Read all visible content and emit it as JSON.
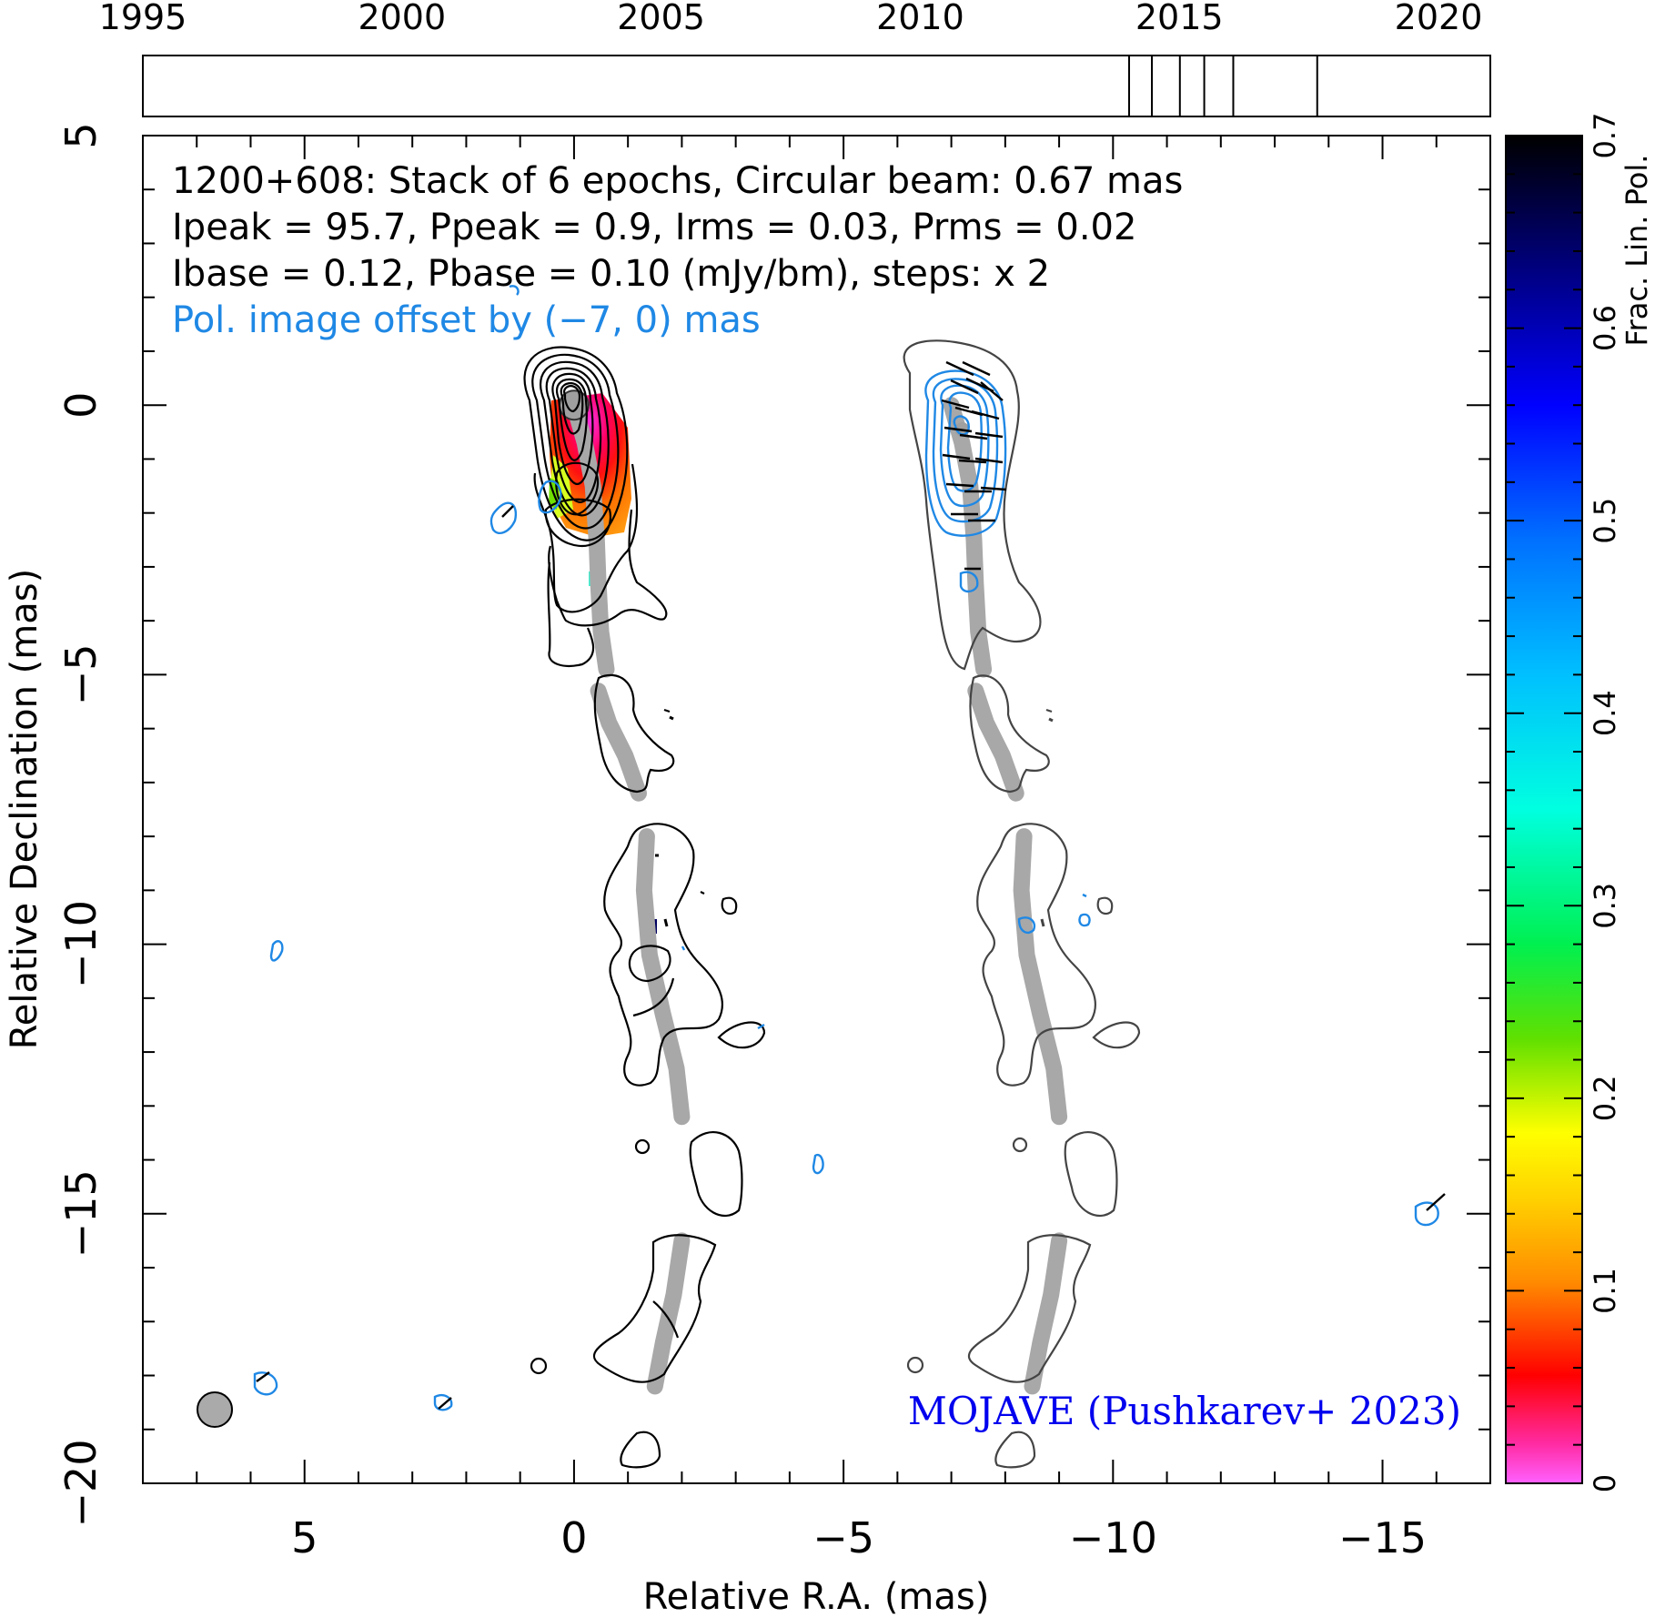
{
  "chart_data": {
    "type": "contour-image",
    "source": "1200+608",
    "header_lines": [
      "1200+608: Stack of 6 epochs, Circular beam: 0.67 mas",
      "Ipeak = 95.7, Ppeak = 0.9, Irms = 0.03, Prms = 0.02",
      "Ibase = 0.12, Pbase = 0.10 (mJy/bm), steps: x 2"
    ],
    "offset_note": "Pol. image offset by (−7, 0) mas",
    "credit": "MOJAVE (Pushkarev+ 2023)",
    "xlabel": "Relative R.A. (mas)",
    "ylabel": "Relative Declination (mas)",
    "xlim": [
      8,
      -17
    ],
    "ylim": [
      -20,
      5
    ],
    "x_ticks": [
      5,
      0,
      -5,
      -10,
      -15
    ],
    "y_ticks": [
      5,
      0,
      -5,
      -10,
      -15,
      -20
    ],
    "timeline": {
      "range": [
        1995,
        2021
      ],
      "tick_labels": [
        1995,
        2000,
        2005,
        2010,
        2015,
        2020
      ],
      "epochs": [
        2014.03,
        2014.47,
        2015.01,
        2015.48,
        2016.04,
        2017.66
      ]
    },
    "colorbar": {
      "label": "Frac. Lin. Pol.",
      "range": [
        0,
        0.7
      ],
      "tick_labels": [
        0,
        0.1,
        0.2,
        0.3,
        0.4,
        0.5,
        0.6,
        0.7
      ]
    },
    "beam_diameter_mas": 0.67,
    "beam_position_mas": [
      6.6,
      -18.9
    ],
    "ridge_line_total": [
      [
        0.0,
        0.0
      ],
      [
        -0.2,
        -0.7
      ],
      [
        -0.35,
        -1.5
      ],
      [
        -0.42,
        -2.5
      ],
      [
        -0.45,
        -3.3
      ],
      [
        -0.5,
        -4.2
      ],
      [
        -0.6,
        -4.9
      ]
    ],
    "ridge_line_total_2": [
      [
        -0.45,
        -5.3
      ],
      [
        -0.65,
        -5.9
      ],
      [
        -0.95,
        -6.5
      ],
      [
        -1.2,
        -7.2
      ]
    ],
    "ridge_line_total_3": [
      [
        -1.35,
        -8.0
      ],
      [
        -1.3,
        -9.0
      ],
      [
        -1.4,
        -10.2
      ],
      [
        -1.65,
        -11.3
      ],
      [
        -1.9,
        -12.3
      ],
      [
        -2.0,
        -13.2
      ]
    ],
    "ridge_line_total_4": [
      [
        -2.0,
        -15.5
      ],
      [
        -1.85,
        -16.5
      ],
      [
        -1.65,
        -17.4
      ],
      [
        -1.5,
        -18.2
      ]
    ],
    "ridge_line_pol": [
      [
        -7.0,
        0.0
      ],
      [
        -7.2,
        -0.7
      ],
      [
        -7.35,
        -1.5
      ],
      [
        -7.42,
        -2.5
      ],
      [
        -7.45,
        -3.3
      ],
      [
        -7.5,
        -4.2
      ],
      [
        -7.6,
        -4.9
      ]
    ],
    "ridge_line_pol_2": [
      [
        -7.45,
        -5.3
      ],
      [
        -7.65,
        -5.9
      ],
      [
        -7.95,
        -6.5
      ],
      [
        -8.2,
        -7.2
      ]
    ],
    "ridge_line_pol_3": [
      [
        -8.35,
        -8.0
      ],
      [
        -8.3,
        -9.0
      ],
      [
        -8.4,
        -10.2
      ],
      [
        -8.65,
        -11.3
      ],
      [
        -8.9,
        -12.3
      ],
      [
        -9.0,
        -13.2
      ]
    ],
    "ridge_line_pol_4": [
      [
        -9.0,
        -15.5
      ],
      [
        -8.85,
        -16.5
      ],
      [
        -8.65,
        -17.4
      ],
      [
        -8.5,
        -18.2
      ]
    ]
  }
}
